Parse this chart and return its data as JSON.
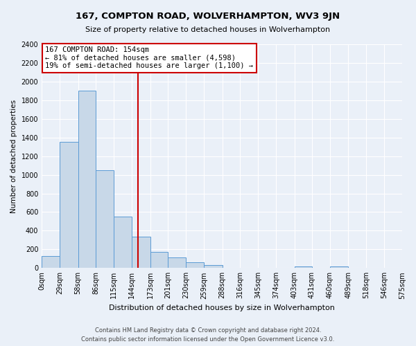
{
  "title": "167, COMPTON ROAD, WOLVERHAMPTON, WV3 9JN",
  "subtitle": "Size of property relative to detached houses in Wolverhampton",
  "xlabel": "Distribution of detached houses by size in Wolverhampton",
  "ylabel": "Number of detached properties",
  "categories": [
    "0sqm",
    "29sqm",
    "58sqm",
    "86sqm",
    "115sqm",
    "144sqm",
    "173sqm",
    "201sqm",
    "230sqm",
    "259sqm",
    "288sqm",
    "316sqm",
    "345sqm",
    "374sqm",
    "403sqm",
    "431sqm",
    "460sqm",
    "489sqm",
    "518sqm",
    "546sqm",
    "575sqm"
  ],
  "bin_edges": [
    0,
    29,
    58,
    86,
    115,
    144,
    173,
    201,
    230,
    259,
    288,
    316,
    345,
    374,
    403,
    431,
    460,
    489,
    518,
    546,
    575
  ],
  "bar_heights": [
    130,
    1350,
    1900,
    1050,
    550,
    340,
    170,
    110,
    60,
    30,
    0,
    0,
    0,
    0,
    20,
    0,
    15,
    0,
    0,
    0,
    0
  ],
  "bar_color": "#c8d8e8",
  "bar_edge_color": "#5b9bd5",
  "vline_x": 154,
  "vline_color": "#cc0000",
  "ylim": [
    0,
    2400
  ],
  "yticks": [
    0,
    200,
    400,
    600,
    800,
    1000,
    1200,
    1400,
    1600,
    1800,
    2000,
    2200,
    2400
  ],
  "annotation_title": "167 COMPTON ROAD: 154sqm",
  "annotation_line1": "← 81% of detached houses are smaller (4,598)",
  "annotation_line2": "19% of semi-detached houses are larger (1,100) →",
  "annotation_box_color": "#ffffff",
  "annotation_box_edge": "#cc0000",
  "footer1": "Contains HM Land Registry data © Crown copyright and database right 2024.",
  "footer2": "Contains public sector information licensed under the Open Government Licence v3.0.",
  "bg_color": "#eaf0f8",
  "plot_bg_color": "#eaf0f8",
  "grid_color": "#ffffff"
}
